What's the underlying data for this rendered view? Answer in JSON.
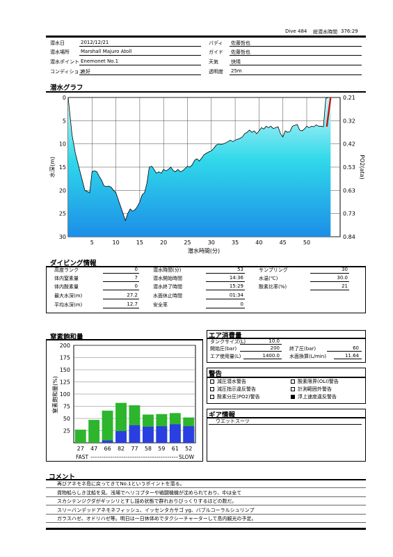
{
  "header": {
    "dive_no": "Dive 484",
    "total_time_label": "総潜水時間",
    "total_time": "376:29"
  },
  "info": {
    "left": [
      {
        "label": "潜水日",
        "value": "2012/12/21"
      },
      {
        "label": "潜水場所",
        "value": "Marshall Majuro Atoll"
      },
      {
        "label": "潜水ポイント",
        "value": "Enemonet  No.1"
      },
      {
        "label": "コンディション",
        "value": "良好"
      }
    ],
    "right": [
      {
        "label": "バディ",
        "value": "佐藤哲也"
      },
      {
        "label": "ガイド",
        "value": "佐藤哲也"
      },
      {
        "label": "天気",
        "value": "快晴"
      },
      {
        "label": "透明度",
        "value": "25m"
      }
    ]
  },
  "dive_graph": {
    "title": "潜水グラフ",
    "chart_data": {
      "type": "area",
      "title": "潜水グラフ",
      "xlabel": "潜水時間(分)",
      "ylabel": "水深(m)",
      "y2label": "PO2(ata)",
      "x_ticks": [
        "5",
        "10",
        "15",
        "20",
        "25",
        "30",
        "35",
        "40",
        "45",
        "50"
      ],
      "y_ticks": [
        "0",
        "5",
        "10",
        "15",
        "20",
        "25",
        "30"
      ],
      "y2_ticks": [
        "0.21",
        "0.32",
        "0.42",
        "0.53",
        "0.63",
        "0.73",
        "0.84"
      ],
      "xlim": [
        0,
        57
      ],
      "ylim": [
        30,
        0
      ],
      "x": [
        0,
        0.8,
        1.5,
        2.5,
        3.5,
        4.5,
        5,
        5.5,
        6,
        6.5,
        7,
        7.5,
        8,
        8.5,
        9,
        9.5,
        10,
        10.5,
        11,
        11.5,
        12,
        12.5,
        13,
        13.5,
        14,
        14.5,
        15,
        15.5,
        16,
        16.5,
        17,
        17.5,
        18,
        18.5,
        19,
        19.5,
        20,
        20.5,
        21,
        21.5,
        22,
        22.5,
        23,
        23.5,
        24,
        24.5,
        25,
        25.5,
        26,
        26.5,
        27,
        27.5,
        28,
        28.5,
        29,
        29.5,
        30,
        30.5,
        31,
        31.5,
        32,
        32.5,
        33,
        33.5,
        34,
        34.5,
        35,
        35.5,
        36,
        36.5,
        37,
        37.5,
        38,
        38.5,
        39,
        39.5,
        40,
        40.5,
        41,
        41.5,
        42,
        42.5,
        43,
        43.5,
        44,
        44.5,
        45,
        45.5,
        46,
        46.5,
        47,
        47.5,
        48,
        48.5,
        49,
        49.5,
        50,
        50.5,
        51,
        51.5,
        52,
        52.5,
        53,
        53.5,
        54,
        54.5,
        55
      ],
      "depth": [
        0,
        8,
        12,
        16,
        20,
        20.5,
        16,
        15.8,
        16,
        17,
        17.8,
        19,
        19.2,
        19.1,
        19.3,
        20,
        20.5,
        22,
        23.5,
        25,
        26.5,
        25,
        24,
        24.5,
        24.2,
        23.5,
        22.5,
        21,
        20.5,
        18.5,
        15,
        14.8,
        15.5,
        16.3,
        16,
        16.3,
        15.5,
        15.8,
        15.5,
        15,
        15.7,
        16,
        15.5,
        16,
        15.8,
        15.3,
        14.8,
        15,
        14.5,
        13.5,
        13.2,
        13.7,
        13,
        12.3,
        12,
        11.7,
        11.5,
        11,
        10.3,
        10,
        10.1,
        10,
        9.8,
        9.5,
        9.2,
        9.5,
        9.2,
        9,
        8.8,
        8.5,
        7.8,
        7.5,
        7,
        7.5,
        7.2,
        7.8,
        7.2,
        6.5,
        6.8,
        6.2,
        6.5,
        6.2,
        6.7,
        6.5,
        6.3,
        7.8,
        8.5,
        7.2,
        7.5,
        7.3,
        6.2,
        6,
        5.8,
        7,
        7.2,
        6.8,
        6.2,
        6.5,
        6.2,
        6.3,
        5.9,
        6.2,
        6.2,
        6.3,
        0.2,
        0,
        0
      ],
      "ascent_warning": {
        "x": [
          54.2,
          55
        ],
        "depth": [
          6.3,
          0
        ]
      }
    }
  },
  "diving_info": {
    "title": "ダイビング情報",
    "col1": [
      {
        "label": "高度ランク",
        "value": "0"
      },
      {
        "label": "体内窒素量",
        "value": "7"
      },
      {
        "label": "体内酸素量",
        "value": "0"
      },
      {
        "label": "最大水深(m)",
        "value": "27.2"
      },
      {
        "label": "平均水深(m)",
        "value": "12.7"
      }
    ],
    "col2": [
      {
        "label": "潜水時間(分)",
        "value": "53"
      },
      {
        "label": "潜水開始時間",
        "value": "14:36"
      },
      {
        "label": "潜水終了時間",
        "value": "15:29"
      },
      {
        "label": "水面休止時間",
        "value": "01:34"
      },
      {
        "label": "安全率",
        "value": "0"
      }
    ],
    "col3": [
      {
        "label": "サンプリング",
        "value": "30"
      },
      {
        "label": "水温(℃)",
        "value": "30.0"
      },
      {
        "label": "酸素比率(%)",
        "value": "21"
      }
    ]
  },
  "nitrogen": {
    "title": "窒素飽和量",
    "chart_data": {
      "type": "bar",
      "title": "窒素飽和量",
      "ylabel": "窒素飽和量(%)",
      "categories": [
        "27",
        "47",
        "66",
        "82",
        "77",
        "58",
        "59",
        "61",
        "52"
      ],
      "series": [
        {
          "color": "#2db52d",
          "values": [
            27,
            47,
            66,
            82,
            77,
            58,
            59,
            61,
            52
          ]
        },
        {
          "color": "#2a3fe0",
          "values": [
            0,
            0,
            5,
            24,
            36,
            33,
            34,
            38,
            34
          ]
        }
      ],
      "ylim": [
        0,
        200
      ],
      "y_ticks": [
        "25",
        "50",
        "75",
        "100",
        "125",
        "150",
        "175",
        "200"
      ],
      "x_left_label": "FAST",
      "x_right_label": "SLOW",
      "x_dash": "----------------------------------------"
    }
  },
  "air": {
    "title": "エア消費量",
    "tank_label": "タンクサイズ(L)",
    "tank_value": "10.0",
    "start_label": "開始圧(bar)",
    "start_value": "200",
    "end_label": "終了圧(bar)",
    "end_value": "60",
    "used_label": "エア使用量(L)",
    "used_value": "1400.0",
    "surface_label": "水面換算(L/min)",
    "surface_value": "11.64"
  },
  "warnings": {
    "title": "警告",
    "items": [
      {
        "label": "減圧潜水警告",
        "checked": false
      },
      {
        "label": "酸素限界(OLI)警告",
        "checked": false
      },
      {
        "label": "減圧指示違反警告",
        "checked": false
      },
      {
        "label": "計測範囲外警告",
        "checked": false
      },
      {
        "label": "酸素分圧(PO2)警告",
        "checked": false
      },
      {
        "label": "浮上速度違反警告",
        "checked": true
      }
    ]
  },
  "gear": {
    "title": "ギア情報",
    "value": "ウエットスーツ"
  },
  "comment": {
    "title": "コメント",
    "lines": [
      "再びアネモネ島に戻ってきてNo.1というポイントを潜る。",
      "貨物船らしき沈船を見、浅場でヘリコプターや戦闘機機が沈められており、中は全て",
      "スカシテンジクダがギッシリとすし詰め状態で群れおりびっくりするほどの数だ。",
      "スリーバンデッドアネモネフィッシュ、イッセンタカサゴ yg、バブルコーラルシュリンプ",
      "ガラスハゼ、オドリハゼ等。明日は一日休体めでタクシーチャーターして島内観光の予定。"
    ]
  },
  "colors": {
    "area_top": "#c8f8f8",
    "area_mid": "#30d8ea",
    "area_bottom": "#1c8ee8",
    "warning_line": "#cc1010",
    "bar_green": "#2db52d",
    "bar_blue": "#2a3fe0"
  }
}
